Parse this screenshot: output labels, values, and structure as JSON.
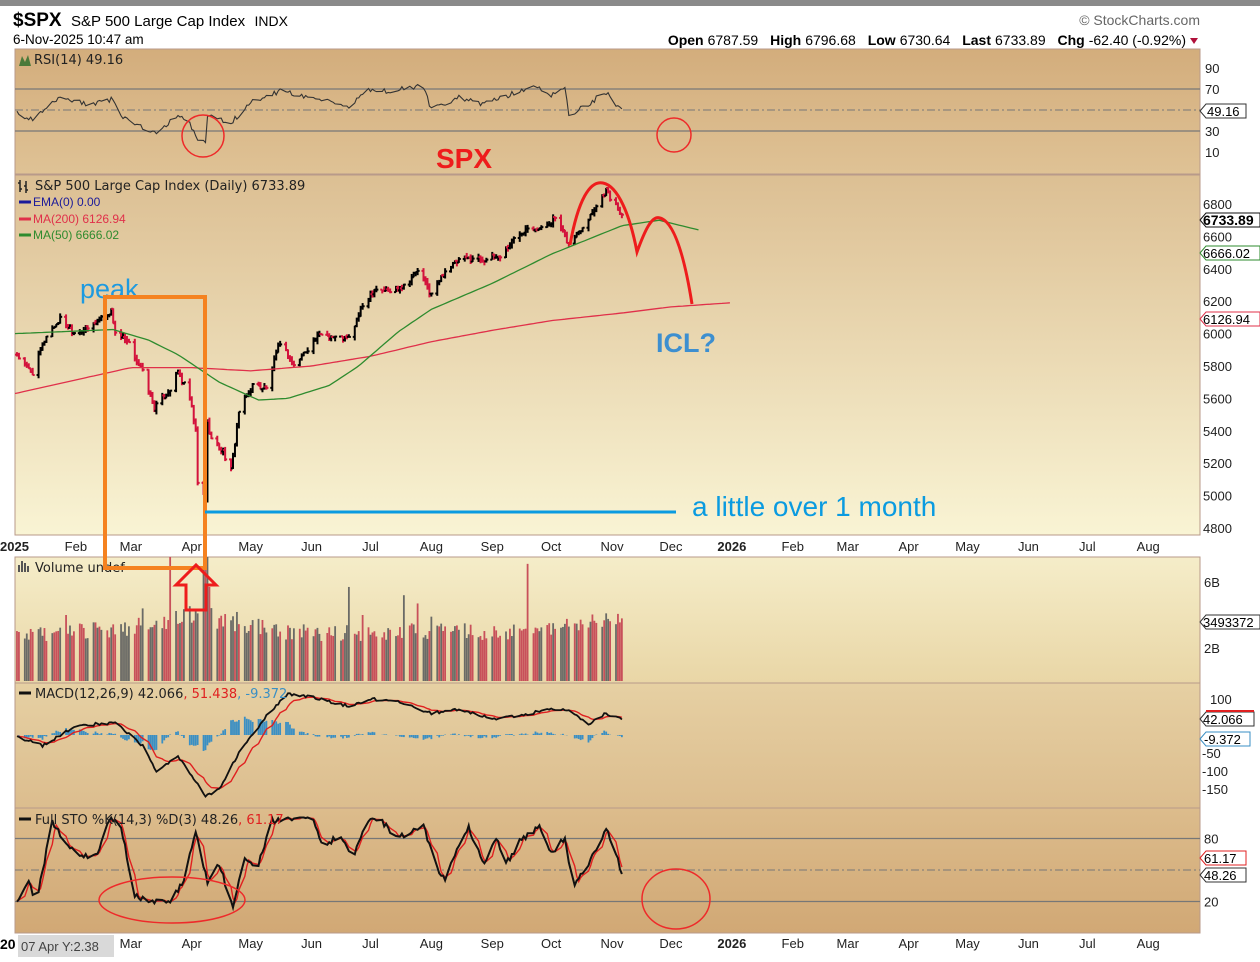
{
  "header": {
    "symbol": "$SPX",
    "name": "S&P 500 Large Cap Index",
    "exchange": "INDX",
    "datetime": "6-Nov-2025 10:47 am",
    "copyright": "© StockCharts.com",
    "open_label": "Open",
    "open": "6787.59",
    "high_label": "High",
    "high": "6796.68",
    "low_label": "Low",
    "low": "6730.64",
    "last_label": "Last",
    "last": "6733.89",
    "chg_label": "Chg",
    "chg": "-62.40 (-0.92%)"
  },
  "colors": {
    "up": "#000000",
    "down": "#d3133c",
    "ma200": "#e0304a",
    "ma50": "#2e8b2e",
    "ema": "#1a1a9a",
    "hist": "#3a8fc4",
    "annot_red": "#ee1c1c",
    "annot_blue": "#0a9be0",
    "annot_orange": "#f58220"
  },
  "legends": {
    "rsi": "RSI(14) 49.16",
    "price": "S&P 500 Large Cap Index (Daily) 6733.89",
    "ema": "EMA(0) 0.00",
    "ma200": "MA(200) 6126.94",
    "ma50": "MA(50) 6666.02",
    "volume": "Volume undef",
    "macd_prefix": "MACD(12,26,9) 42.066",
    "macd_signal": ", 51.438",
    "macd_hist": ", -9.372",
    "sto_prefix": "Full STO %K(14,3) %D(3) 48.26",
    "sto_d": ", 61.17"
  },
  "tags": {
    "rsi": "49.16",
    "last": "6733.89",
    "ma50": "6666.02",
    "ma200": "6126.94",
    "volume": "3493372",
    "macd": "42.066",
    "macd_hist": "-9.372",
    "sto_d": "61.17",
    "sto_k": "48.26"
  },
  "crosshair_readout": "07 Apr Y:2.38",
  "bottom_axis_year_fragment": "20",
  "annotations": {
    "spx": "SPX",
    "peak": "peak",
    "icl": "ICL?",
    "duration": "a little over 1 month"
  },
  "chart_data": {
    "type": "ohlc",
    "title": "S&P 500 Large Cap Index (Daily)",
    "x_axis_labels": [
      {
        "d": "2025-01-01",
        "t": "2025"
      },
      {
        "d": "2025-02-01",
        "t": "Feb"
      },
      {
        "d": "2025-03-01",
        "t": "Mar"
      },
      {
        "d": "2025-04-01",
        "t": "Apr"
      },
      {
        "d": "2025-05-01",
        "t": "May"
      },
      {
        "d": "2025-06-01",
        "t": "Jun"
      },
      {
        "d": "2025-07-01",
        "t": "Jul"
      },
      {
        "d": "2025-08-01",
        "t": "Aug"
      },
      {
        "d": "2025-09-01",
        "t": "Sep"
      },
      {
        "d": "2025-10-01",
        "t": "Oct"
      },
      {
        "d": "2025-11-01",
        "t": "Nov"
      },
      {
        "d": "2025-12-01",
        "t": "Dec"
      },
      {
        "d": "2026-01-01",
        "t": "2026"
      },
      {
        "d": "2026-02-01",
        "t": "Feb"
      },
      {
        "d": "2026-03-01",
        "t": "Mar"
      },
      {
        "d": "2026-04-01",
        "t": "Apr"
      },
      {
        "d": "2026-05-01",
        "t": "May"
      },
      {
        "d": "2026-06-01",
        "t": "Jun"
      },
      {
        "d": "2026-07-01",
        "t": "Jul"
      },
      {
        "d": "2026-08-01",
        "t": "Aug"
      }
    ],
    "price_axis": {
      "ticks": [
        6800,
        6600,
        6400,
        6200,
        6000,
        5800,
        5600,
        5400,
        5200,
        5000,
        4800
      ],
      "ylim": [
        4750,
        6950
      ]
    },
    "price_closes": [
      [
        "2025-01-02",
        5870
      ],
      [
        "2025-01-06",
        5800
      ],
      [
        "2025-01-10",
        5760
      ],
      [
        "2025-01-17",
        5990
      ],
      [
        "2025-01-24",
        6090
      ],
      [
        "2025-01-31",
        6010
      ],
      [
        "2025-02-07",
        6030
      ],
      [
        "2025-02-14",
        6100
      ],
      [
        "2025-02-19",
        6140
      ],
      [
        "2025-02-21",
        6010
      ],
      [
        "2025-02-28",
        5930
      ],
      [
        "2025-03-07",
        5760
      ],
      [
        "2025-03-13",
        5540
      ],
      [
        "2025-03-21",
        5660
      ],
      [
        "2025-03-25",
        5760
      ],
      [
        "2025-03-31",
        5600
      ],
      [
        "2025-04-03",
        5400
      ],
      [
        "2025-04-04",
        5070
      ],
      [
        "2025-04-08",
        4980
      ],
      [
        "2025-04-09",
        5450
      ],
      [
        "2025-04-11",
        5350
      ],
      [
        "2025-04-17",
        5270
      ],
      [
        "2025-04-21",
        5150
      ],
      [
        "2025-04-25",
        5520
      ],
      [
        "2025-05-02",
        5680
      ],
      [
        "2025-05-09",
        5660
      ],
      [
        "2025-05-16",
        5950
      ],
      [
        "2025-05-23",
        5800
      ],
      [
        "2025-05-30",
        5910
      ],
      [
        "2025-06-06",
        6000
      ],
      [
        "2025-06-13",
        5975
      ],
      [
        "2025-06-20",
        5970
      ],
      [
        "2025-06-27",
        6170
      ],
      [
        "2025-07-03",
        6280
      ],
      [
        "2025-07-11",
        6260
      ],
      [
        "2025-07-18",
        6300
      ],
      [
        "2025-07-25",
        6390
      ],
      [
        "2025-08-01",
        6240
      ],
      [
        "2025-08-08",
        6390
      ],
      [
        "2025-08-15",
        6450
      ],
      [
        "2025-08-22",
        6466
      ],
      [
        "2025-08-29",
        6460
      ],
      [
        "2025-09-05",
        6480
      ],
      [
        "2025-09-12",
        6585
      ],
      [
        "2025-09-19",
        6665
      ],
      [
        "2025-09-26",
        6645
      ],
      [
        "2025-10-03",
        6715
      ],
      [
        "2025-10-10",
        6550
      ],
      [
        "2025-10-17",
        6665
      ],
      [
        "2025-10-24",
        6790
      ],
      [
        "2025-10-29",
        6890
      ],
      [
        "2025-10-31",
        6840
      ],
      [
        "2025-11-06",
        6734
      ]
    ],
    "ma200": [
      [
        "2025-01-01",
        5630
      ],
      [
        "2025-03-01",
        5790
      ],
      [
        "2025-04-01",
        5790
      ],
      [
        "2025-05-01",
        5770
      ],
      [
        "2025-06-01",
        5800
      ],
      [
        "2025-07-01",
        5860
      ],
      [
        "2025-08-01",
        5950
      ],
      [
        "2025-09-01",
        6020
      ],
      [
        "2025-10-01",
        6080
      ],
      [
        "2025-11-06",
        6127
      ],
      [
        "2025-12-01",
        6165
      ],
      [
        "2025-12-31",
        6190
      ]
    ],
    "ma50": [
      [
        "2025-01-01",
        6000
      ],
      [
        "2025-02-20",
        6025
      ],
      [
        "2025-03-10",
        5960
      ],
      [
        "2025-03-25",
        5870
      ],
      [
        "2025-04-15",
        5700
      ],
      [
        "2025-05-05",
        5590
      ],
      [
        "2025-05-20",
        5600
      ],
      [
        "2025-06-10",
        5680
      ],
      [
        "2025-06-25",
        5800
      ],
      [
        "2025-07-15",
        6010
      ],
      [
        "2025-08-01",
        6150
      ],
      [
        "2025-09-01",
        6310
      ],
      [
        "2025-10-01",
        6490
      ],
      [
        "2025-11-06",
        6666
      ],
      [
        "2025-11-25",
        6700
      ],
      [
        "2025-12-15",
        6640
      ]
    ],
    "rsi": {
      "ticks": [
        90,
        70,
        30,
        10
      ],
      "values": [
        [
          "2025-01-02",
          47
        ],
        [
          "2025-01-10",
          40
        ],
        [
          "2025-01-24",
          62
        ],
        [
          "2025-02-07",
          55
        ],
        [
          "2025-02-19",
          60
        ],
        [
          "2025-02-24",
          45
        ],
        [
          "2025-03-10",
          30
        ],
        [
          "2025-03-14",
          28
        ],
        [
          "2025-03-25",
          46
        ],
        [
          "2025-03-31",
          36
        ],
        [
          "2025-04-04",
          22
        ],
        [
          "2025-04-08",
          20
        ],
        [
          "2025-04-09",
          44
        ],
        [
          "2025-04-21",
          38
        ],
        [
          "2025-05-02",
          58
        ],
        [
          "2025-05-16",
          68
        ],
        [
          "2025-06-06",
          60
        ],
        [
          "2025-06-13",
          55
        ],
        [
          "2025-06-20",
          52
        ],
        [
          "2025-06-30",
          70
        ],
        [
          "2025-07-10",
          68
        ],
        [
          "2025-07-28",
          73
        ],
        [
          "2025-08-01",
          50
        ],
        [
          "2025-08-15",
          62
        ],
        [
          "2025-08-27",
          55
        ],
        [
          "2025-09-12",
          66
        ],
        [
          "2025-09-22",
          74
        ],
        [
          "2025-09-30",
          64
        ],
        [
          "2025-10-08",
          71
        ],
        [
          "2025-10-10",
          45
        ],
        [
          "2025-10-20",
          56
        ],
        [
          "2025-10-29",
          67
        ],
        [
          "2025-11-06",
          49.16
        ]
      ]
    },
    "macd": {
      "ticks": [
        100,
        -50,
        -100,
        -150
      ],
      "values": [
        [
          "2025-01-02",
          -5
        ],
        [
          "2025-01-15",
          -30
        ],
        [
          "2025-02-01",
          25
        ],
        [
          "2025-02-21",
          35
        ],
        [
          "2025-03-07",
          -30
        ],
        [
          "2025-03-14",
          -100
        ],
        [
          "2025-03-25",
          -60
        ],
        [
          "2025-04-08",
          -170
        ],
        [
          "2025-04-15",
          -150
        ],
        [
          "2025-04-25",
          -50
        ],
        [
          "2025-05-10",
          60
        ],
        [
          "2025-05-20",
          115
        ],
        [
          "2025-06-01",
          105
        ],
        [
          "2025-06-20",
          80
        ],
        [
          "2025-07-01",
          100
        ],
        [
          "2025-07-15",
          95
        ],
        [
          "2025-08-01",
          60
        ],
        [
          "2025-08-15",
          72
        ],
        [
          "2025-09-01",
          45
        ],
        [
          "2025-09-15",
          55
        ],
        [
          "2025-09-30",
          70
        ],
        [
          "2025-10-10",
          72
        ],
        [
          "2025-10-20",
          30
        ],
        [
          "2025-10-29",
          60
        ],
        [
          "2025-11-06",
          42.066
        ]
      ]
    },
    "stochastic": {
      "ticks": [
        80,
        20
      ],
      "k": [
        [
          "2025-01-02",
          20
        ],
        [
          "2025-01-08",
          38
        ],
        [
          "2025-01-12",
          20
        ],
        [
          "2025-01-20",
          96
        ],
        [
          "2025-01-25",
          80
        ],
        [
          "2025-02-03",
          62
        ],
        [
          "2025-02-12",
          65
        ],
        [
          "2025-02-18",
          100
        ],
        [
          "2025-02-24",
          90
        ],
        [
          "2025-03-03",
          25
        ],
        [
          "2025-03-20",
          18
        ],
        [
          "2025-03-28",
          40
        ],
        [
          "2025-04-03",
          86
        ],
        [
          "2025-04-09",
          40
        ],
        [
          "2025-04-15",
          55
        ],
        [
          "2025-04-22",
          15
        ],
        [
          "2025-04-28",
          60
        ],
        [
          "2025-05-05",
          55
        ],
        [
          "2025-05-12",
          97
        ],
        [
          "2025-05-20",
          99
        ],
        [
          "2025-06-01",
          100
        ],
        [
          "2025-06-07",
          70
        ],
        [
          "2025-06-15",
          85
        ],
        [
          "2025-06-22",
          60
        ],
        [
          "2025-06-28",
          95
        ],
        [
          "2025-07-05",
          100
        ],
        [
          "2025-07-15",
          80
        ],
        [
          "2025-07-28",
          92
        ],
        [
          "2025-08-04",
          50
        ],
        [
          "2025-08-08",
          40
        ],
        [
          "2025-08-15",
          75
        ],
        [
          "2025-08-20",
          90
        ],
        [
          "2025-08-28",
          55
        ],
        [
          "2025-09-03",
          82
        ],
        [
          "2025-09-08",
          55
        ],
        [
          "2025-09-14",
          75
        ],
        [
          "2025-09-25",
          92
        ],
        [
          "2025-10-01",
          65
        ],
        [
          "2025-10-08",
          82
        ],
        [
          "2025-10-12",
          32
        ],
        [
          "2025-10-18",
          50
        ],
        [
          "2025-10-25",
          75
        ],
        [
          "2025-10-29",
          90
        ],
        [
          "2025-11-06",
          48.26
        ]
      ]
    },
    "volume": {
      "unit": "B",
      "ticks": [
        "6B",
        "2B"
      ],
      "baseline": [
        [
          "2025-01-02",
          2.6
        ],
        [
          "2025-02-01",
          2.9
        ],
        [
          "2025-03-01",
          3.2
        ],
        [
          "2025-04-01",
          3.8
        ],
        [
          "2025-04-20",
          3.6
        ],
        [
          "2025-05-15",
          2.9
        ],
        [
          "2025-07-01",
          2.8
        ],
        [
          "2025-08-01",
          3.0
        ],
        [
          "2025-09-01",
          2.9
        ],
        [
          "2025-10-01",
          3.0
        ],
        [
          "2025-10-28",
          3.7
        ],
        [
          "2025-11-06",
          3.5
        ]
      ],
      "spikes": [
        [
          "2025-01-27",
          4.0
        ],
        [
          "2025-03-07",
          4.4
        ],
        [
          "2025-03-21",
          7.8
        ],
        [
          "2025-04-04",
          4.1
        ],
        [
          "2025-04-07",
          6.9
        ],
        [
          "2025-04-08",
          7.1
        ],
        [
          "2025-04-09",
          7.9
        ],
        [
          "2025-04-10",
          5.7
        ],
        [
          "2025-06-20",
          5.7
        ],
        [
          "2025-06-27",
          4.0
        ],
        [
          "2025-07-18",
          5.2
        ],
        [
          "2025-07-25",
          4.7
        ],
        [
          "2025-09-19",
          7.1
        ],
        [
          "2025-08-01",
          3.9
        ]
      ]
    }
  }
}
